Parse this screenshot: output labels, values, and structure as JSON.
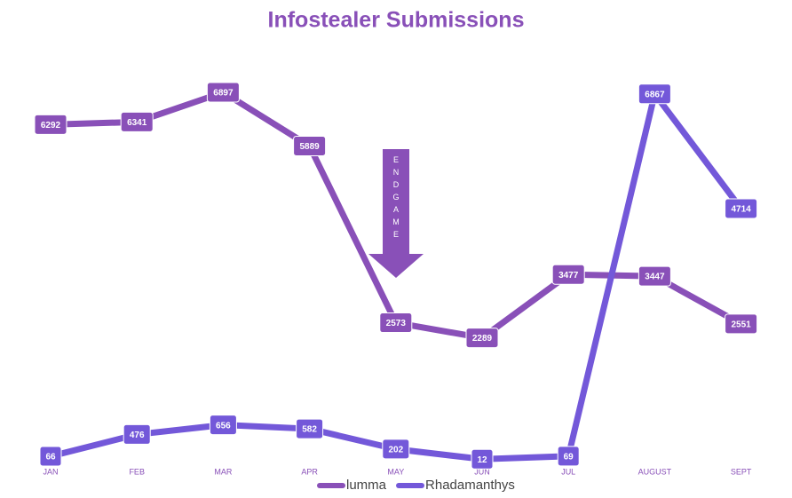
{
  "chart_data": {
    "type": "line",
    "title": "Infostealer Submissions",
    "categories": [
      "JAN",
      "FEB",
      "MAR",
      "APR",
      "MAY",
      "JUN",
      "JUL",
      "AUGUST",
      "SEPT"
    ],
    "series": [
      {
        "name": "lumma",
        "color": "#8950b8",
        "values": [
          6292,
          6341,
          6897,
          5889,
          2573,
          2289,
          3477,
          3447,
          2551
        ]
      },
      {
        "name": "Rhadamanthys",
        "color": "#7358d9",
        "values": [
          66,
          476,
          656,
          582,
          202,
          12,
          69,
          6867,
          4714
        ]
      }
    ],
    "annotation": "ENDGAME",
    "legend": "bottom"
  }
}
